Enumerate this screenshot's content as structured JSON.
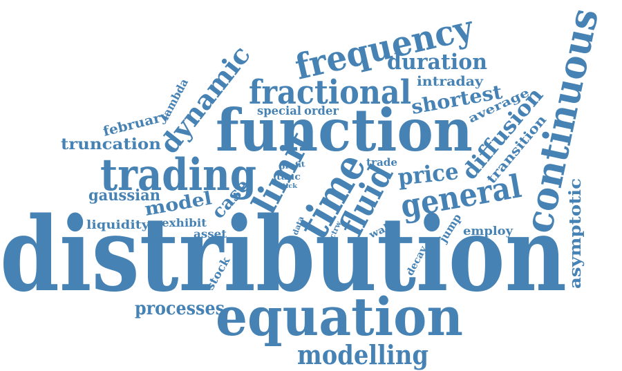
{
  "theme": {
    "word_color": "#4682b4",
    "background": "#ffffff"
  },
  "words": [
    {
      "id": "distribution",
      "text": "distribution"
    },
    {
      "id": "function",
      "text": "function"
    },
    {
      "id": "equation",
      "text": "equation"
    },
    {
      "id": "continuous",
      "text": "continuous"
    },
    {
      "id": "frequency",
      "text": "frequency"
    },
    {
      "id": "trading",
      "text": "trading"
    },
    {
      "id": "fractional",
      "text": "fractional"
    },
    {
      "id": "time",
      "text": "time"
    },
    {
      "id": "general",
      "text": "general"
    },
    {
      "id": "dynamic",
      "text": "dynamic"
    },
    {
      "id": "limit",
      "text": "limit"
    },
    {
      "id": "fluid",
      "text": "fluid"
    },
    {
      "id": "modelling",
      "text": "modelling"
    },
    {
      "id": "duration",
      "text": "duration"
    },
    {
      "id": "shortest",
      "text": "shortest"
    },
    {
      "id": "diffusion",
      "text": "diffusion"
    },
    {
      "id": "price",
      "text": "price"
    },
    {
      "id": "model",
      "text": "model"
    },
    {
      "id": "case",
      "text": "case"
    },
    {
      "id": "processes",
      "text": "processes"
    },
    {
      "id": "asymptotic",
      "text": "asymptotic"
    },
    {
      "id": "truncation",
      "text": "truncation"
    },
    {
      "id": "gaussian",
      "text": "gaussian"
    },
    {
      "id": "transition",
      "text": "transition"
    },
    {
      "id": "intraday",
      "text": "intraday"
    },
    {
      "id": "average",
      "text": "average"
    },
    {
      "id": "february",
      "text": "february"
    },
    {
      "id": "lambda",
      "text": "lambda"
    },
    {
      "id": "special",
      "text": "special"
    },
    {
      "id": "order",
      "text": "order"
    },
    {
      "id": "liquidity",
      "text": "liquidity"
    },
    {
      "id": "exhibit",
      "text": "exhibit"
    },
    {
      "id": "asset",
      "text": "asset"
    },
    {
      "id": "employ",
      "text": "employ"
    },
    {
      "id": "jump",
      "text": "jump"
    },
    {
      "id": "stock",
      "text": "stock"
    },
    {
      "id": "trade",
      "text": "trade"
    },
    {
      "id": "walk",
      "text": "walk"
    },
    {
      "id": "decay",
      "text": "decay"
    },
    {
      "id": "profit",
      "text": "profit"
    },
    {
      "id": "tauc",
      "text": "tauc"
    },
    {
      "id": "tick",
      "text": "tick"
    },
    {
      "id": "data",
      "text": "data"
    },
    {
      "id": "ctrw",
      "text": "ctrw"
    }
  ]
}
